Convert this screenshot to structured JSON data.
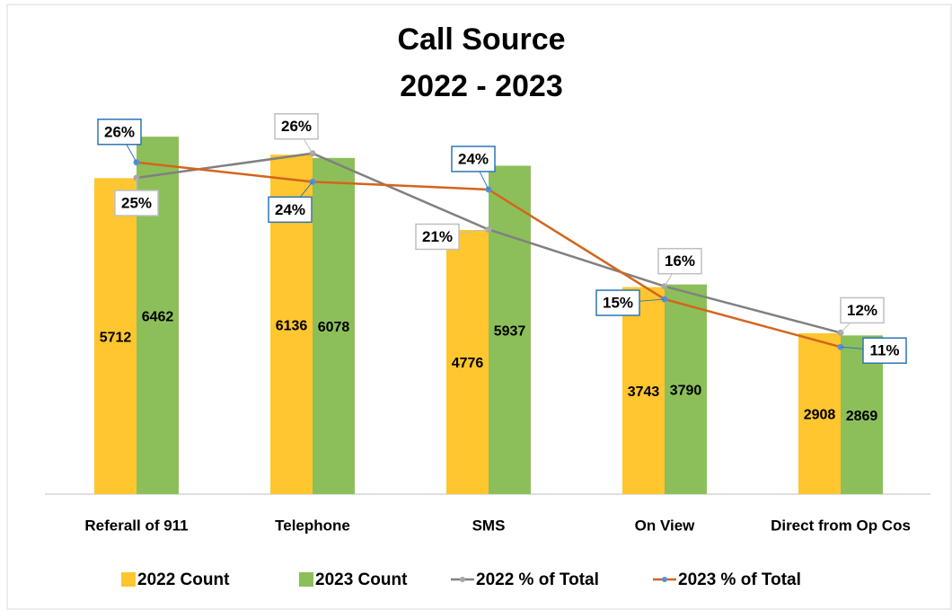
{
  "chart_data": {
    "type": "bar",
    "title": "Call Source",
    "subtitle": "2022 - 2023",
    "categories": [
      "Referall of 911",
      "Telephone",
      "SMS",
      "On View",
      "Direct from Op Cos"
    ],
    "ylim": [
      0,
      7000
    ],
    "y2lim": [
      0,
      30
    ],
    "series": [
      {
        "name": "2022 Count",
        "type": "bar",
        "color": "#ffc62f",
        "values": [
          5712,
          6136,
          4776,
          3743,
          2908
        ]
      },
      {
        "name": "2023 Count",
        "type": "bar",
        "color": "#8cbf5a",
        "values": [
          6462,
          6078,
          5937,
          3790,
          2869
        ]
      },
      {
        "name": "2022 % of Total",
        "type": "line",
        "axis": "y2",
        "color": "#808080",
        "marker_color": "#a6a6a6",
        "label_border": "#bfbfbf",
        "values": [
          24.5,
          26.4,
          20.5,
          16.1,
          12.5
        ],
        "value_labels": [
          "25%",
          "26%",
          "21%",
          "16%",
          "12%"
        ]
      },
      {
        "name": "2023 % of Total",
        "type": "line",
        "axis": "y2",
        "color": "#d4651c",
        "marker_color": "#5b8fd4",
        "label_border": "#2e75b6",
        "values": [
          25.7,
          24.2,
          23.6,
          15.1,
          11.4
        ],
        "value_labels": [
          "26%",
          "24%",
          "24%",
          "15%",
          "11%"
        ]
      }
    ]
  }
}
